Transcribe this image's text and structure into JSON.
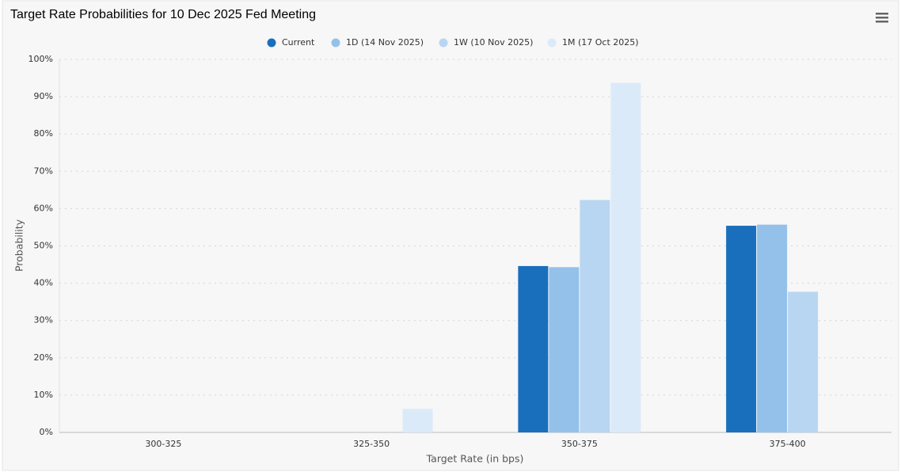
{
  "chart_data": {
    "type": "bar",
    "title": "Target Rate Probabilities for 10 Dec 2025 Fed Meeting",
    "x_label": "Target Rate (in bps)",
    "y_label": "Probability",
    "categories": [
      "300-325",
      "325-350",
      "350-375",
      "375-400"
    ],
    "series": [
      {
        "name": "Current",
        "color": "#1a6fbd",
        "values": [
          0,
          0,
          44.6,
          55.4
        ]
      },
      {
        "name": "1D (14 Nov 2025)",
        "color": "#94c1ea",
        "values": [
          0,
          0,
          44.3,
          55.7
        ]
      },
      {
        "name": "1W (10 Nov 2025)",
        "color": "#b8d6f2",
        "values": [
          0,
          0,
          62.3,
          37.7
        ]
      },
      {
        "name": "1M (17 Oct 2025)",
        "color": "#dbeaf8",
        "values": [
          0,
          6.3,
          93.7,
          0
        ]
      }
    ],
    "ylim": [
      0,
      100
    ],
    "yticks": [
      {
        "value": 0,
        "label": "0%"
      },
      {
        "value": 10,
        "label": "10%"
      },
      {
        "value": 20,
        "label": "20%"
      },
      {
        "value": 30,
        "label": "30%"
      },
      {
        "value": 40,
        "label": "40%"
      },
      {
        "value": 50,
        "label": "50%"
      },
      {
        "value": 60,
        "label": "60%"
      },
      {
        "value": 70,
        "label": "70%"
      },
      {
        "value": 80,
        "label": "80%"
      },
      {
        "value": 90,
        "label": "90%"
      },
      {
        "value": 100,
        "label": "100%"
      }
    ],
    "grid": true,
    "legend": "top"
  }
}
